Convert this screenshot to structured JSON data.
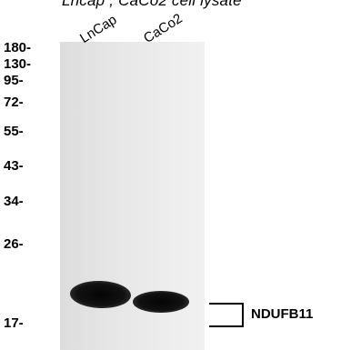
{
  "caption": "Lncap , CaCo2 cell lysate",
  "lanes": [
    "LnCap",
    "CaCo2"
  ],
  "markers": [
    "180-",
    "130-",
    "95-",
    "72-",
    "55-",
    "43-",
    "34-",
    "26-",
    "17-"
  ],
  "target": "NDUFB11",
  "colors": {
    "background": "#ffffff",
    "membrane": "#e8e8e8",
    "band": "#0a0a0a",
    "text": "#000000"
  }
}
